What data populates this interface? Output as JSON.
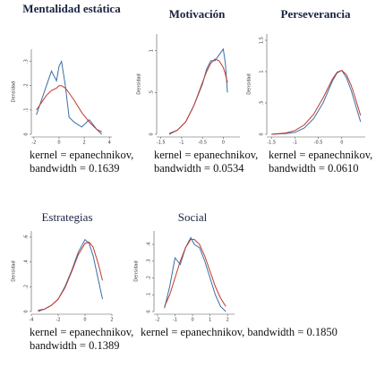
{
  "chart_data": [
    {
      "type": "line",
      "title": "Mentalidad estática",
      "ylabel": "Densidad",
      "x": [
        -1.8,
        -1.4,
        -1,
        -0.6,
        -0.2,
        0,
        0.2,
        0.5,
        0.8,
        1.2,
        1.8,
        2.4,
        3,
        3.4
      ],
      "series": [
        {
          "color": "#3a6ea5",
          "values": [
            0.08,
            0.14,
            0.2,
            0.26,
            0.22,
            0.28,
            0.3,
            0.2,
            0.07,
            0.05,
            0.03,
            0.06,
            0.02,
            0
          ]
        },
        {
          "color": "#c0392b",
          "values": [
            0.1,
            0.13,
            0.16,
            0.18,
            0.19,
            0.2,
            0.2,
            0.19,
            0.17,
            0.14,
            0.09,
            0.05,
            0.02,
            0.01
          ]
        }
      ],
      "xlim": [
        -2.2,
        4.2
      ],
      "xticks": [
        -2,
        0,
        2,
        4
      ],
      "ylim": [
        0,
        0.35
      ],
      "yticks": [
        0,
        {
          "value": 0.1,
          "label": ".1"
        },
        {
          "value": 0.2,
          "label": ".2"
        },
        {
          "value": 0.3,
          "label": ".3"
        }
      ],
      "caption": "kernel = epanechnikov, bandwidth = 0.1639"
    },
    {
      "type": "line",
      "title": "Motivación",
      "ylabel": "Densidad",
      "x": [
        -1.3,
        -1.1,
        -0.9,
        -0.7,
        -0.5,
        -0.4,
        -0.3,
        -0.2,
        -0.1,
        0,
        0.05,
        0.1
      ],
      "series": [
        {
          "color": "#3a6ea5",
          "values": [
            0,
            0.05,
            0.15,
            0.35,
            0.6,
            0.78,
            0.88,
            0.88,
            0.95,
            1.02,
            0.85,
            0.5
          ]
        },
        {
          "color": "#c0392b",
          "values": [
            0.01,
            0.05,
            0.15,
            0.35,
            0.62,
            0.75,
            0.85,
            0.9,
            0.88,
            0.8,
            0.72,
            0.62
          ]
        }
      ],
      "xlim": [
        -1.6,
        0.4
      ],
      "xticks": [
        -1.5,
        -1,
        -0.5,
        0
      ],
      "ylim": [
        0,
        1.2
      ],
      "yticks": [
        0,
        {
          "value": 0.5,
          "label": ".5"
        },
        1
      ],
      "caption": "kernel = epanechnikov, bandwidth = 0.0534"
    },
    {
      "type": "line",
      "title": "Perseverancia",
      "ylabel": "Densidad",
      "x": [
        -1.5,
        -1.2,
        -1,
        -0.8,
        -0.6,
        -0.4,
        -0.2,
        -0.1,
        0,
        0.1,
        0.2,
        0.3,
        0.4
      ],
      "series": [
        {
          "color": "#3a6ea5",
          "values": [
            0,
            0.01,
            0.03,
            0.1,
            0.25,
            0.5,
            0.85,
            0.98,
            1.02,
            0.9,
            0.7,
            0.45,
            0.2
          ]
        },
        {
          "color": "#c0392b",
          "values": [
            0,
            0.02,
            0.06,
            0.15,
            0.32,
            0.58,
            0.88,
            0.99,
            1.02,
            0.95,
            0.78,
            0.55,
            0.3
          ]
        }
      ],
      "xlim": [
        -1.6,
        0.5
      ],
      "xticks": [
        -1.5,
        -1,
        -0.5,
        0
      ],
      "ylim": [
        0,
        1.6
      ],
      "yticks": [
        0,
        {
          "value": 0.5,
          "label": ".5"
        },
        1,
        1.5
      ],
      "caption": "kernel = epanechnikov, bandwidth = 0.0610"
    },
    {
      "type": "line",
      "title": "Estrategias",
      "ylabel": "Densidad",
      "x": [
        -3.5,
        -3,
        -2.5,
        -2,
        -1.5,
        -1,
        -0.5,
        0,
        0.3,
        0.6,
        1,
        1.3
      ],
      "series": [
        {
          "color": "#3a6ea5",
          "values": [
            0,
            0.02,
            0.05,
            0.1,
            0.2,
            0.33,
            0.48,
            0.58,
            0.55,
            0.45,
            0.25,
            0.1
          ]
        },
        {
          "color": "#c0392b",
          "values": [
            0.01,
            0.02,
            0.05,
            0.1,
            0.19,
            0.32,
            0.46,
            0.55,
            0.56,
            0.52,
            0.38,
            0.25
          ]
        }
      ],
      "xlim": [
        -4,
        2
      ],
      "xticks": [
        -4,
        -2,
        0,
        2
      ],
      "ylim": [
        0,
        0.65
      ],
      "yticks": [
        0,
        {
          "value": 0.2,
          "label": ".2"
        },
        {
          "value": 0.4,
          "label": ".4"
        },
        {
          "value": 0.6,
          "label": ".6"
        }
      ],
      "caption": "kernel = epanechnikov, bandwidth = 0.1389"
    },
    {
      "type": "line",
      "title": "Social",
      "ylabel": "Densidad",
      "x": [
        -1.6,
        -1.3,
        -1,
        -0.7,
        -0.4,
        -0.1,
        0.1,
        0.4,
        0.7,
        1,
        1.3,
        1.6,
        1.9
      ],
      "series": [
        {
          "color": "#3a6ea5",
          "values": [
            0.02,
            0.15,
            0.32,
            0.28,
            0.38,
            0.44,
            0.4,
            0.38,
            0.3,
            0.2,
            0.1,
            0.03,
            0
          ]
        },
        {
          "color": "#c0392b",
          "values": [
            0.03,
            0.1,
            0.2,
            0.3,
            0.38,
            0.43,
            0.43,
            0.4,
            0.33,
            0.24,
            0.15,
            0.08,
            0.03
          ]
        }
      ],
      "xlim": [
        -2.2,
        2.4
      ],
      "xticks": [
        -2,
        -1,
        0,
        1,
        2
      ],
      "ylim": [
        0,
        0.48
      ],
      "yticks": [
        0,
        {
          "value": 0.1,
          "label": ".1"
        },
        {
          "value": 0.2,
          "label": ".2"
        },
        {
          "value": 0.3,
          "label": ".3"
        },
        {
          "value": 0.4,
          "label": ".4"
        }
      ],
      "caption": "kernel = epanechnikov, bandwidth = 0.1850"
    }
  ]
}
